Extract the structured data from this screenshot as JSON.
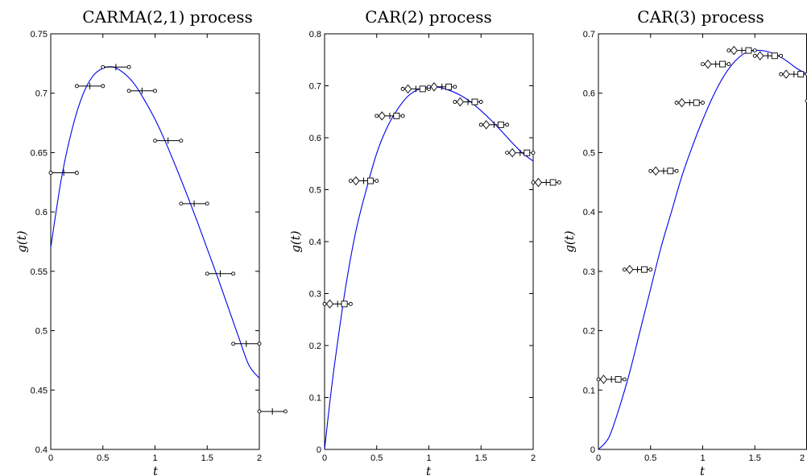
{
  "chart_data": [
    {
      "type": "line",
      "title": "CARMA(2,1) process",
      "xlabel": "t",
      "ylabel": "g(t)",
      "xlim": [
        0,
        2
      ],
      "ylim": [
        0.4,
        0.75
      ],
      "xticks": [
        0,
        0.5,
        1,
        1.5,
        2
      ],
      "xtick_labels": [
        "0",
        "0.5",
        "1",
        "1.5",
        "2"
      ],
      "yticks": [
        0.4,
        0.45,
        0.5,
        0.55,
        0.6,
        0.65,
        0.7,
        0.75
      ],
      "ytick_labels": [
        "0.4",
        "0.45",
        "0.5",
        "0.55",
        "0.6",
        "0.65",
        "0.7",
        "0.75"
      ],
      "curve": {
        "x": [
          0,
          0.1,
          0.2,
          0.3,
          0.4,
          0.5,
          0.6,
          0.7,
          0.8,
          0.9,
          1.0,
          1.1,
          1.2,
          1.3,
          1.4,
          1.5,
          1.6,
          1.7,
          1.8,
          1.9,
          2.0
        ],
        "y": [
          0.57,
          0.627,
          0.668,
          0.697,
          0.714,
          0.721,
          0.722,
          0.717,
          0.708,
          0.694,
          0.678,
          0.659,
          0.638,
          0.616,
          0.593,
          0.569,
          0.545,
          0.52,
          0.495,
          0.471,
          0.46
        ]
      },
      "intervals": [
        {
          "x0": 0.0,
          "x1": 0.25,
          "y": 0.633
        },
        {
          "x0": 0.25,
          "x1": 0.5,
          "y": 0.706
        },
        {
          "x0": 0.5,
          "x1": 0.75,
          "y": 0.722
        },
        {
          "x0": 0.75,
          "x1": 1.0,
          "y": 0.702
        },
        {
          "x0": 1.0,
          "x1": 1.25,
          "y": 0.66
        },
        {
          "x0": 1.25,
          "x1": 1.5,
          "y": 0.607
        },
        {
          "x0": 1.5,
          "x1": 1.75,
          "y": 0.548
        },
        {
          "x0": 1.75,
          "x1": 2.0,
          "y": 0.489
        },
        {
          "x0": 2.0,
          "x1": 2.25,
          "y": 0.432
        }
      ],
      "marker_style": "plus",
      "grid": false
    },
    {
      "type": "line",
      "title": "CAR(2) process",
      "xlabel": "t",
      "ylabel": "g(t)",
      "xlim": [
        0,
        2
      ],
      "ylim": [
        0,
        0.8
      ],
      "xticks": [
        0,
        0.5,
        1,
        1.5,
        2
      ],
      "xtick_labels": [
        "0",
        "0.5",
        "1",
        "1.5",
        "2"
      ],
      "yticks": [
        0,
        0.1,
        0.2,
        0.3,
        0.4,
        0.5,
        0.6,
        0.7,
        0.8
      ],
      "ytick_labels": [
        "0",
        "0.1",
        "0.2",
        "0.3",
        "0.4",
        "0.5",
        "0.6",
        "0.7",
        "0.8"
      ],
      "curve": {
        "x": [
          0,
          0.05,
          0.1,
          0.2,
          0.3,
          0.4,
          0.5,
          0.6,
          0.7,
          0.8,
          0.9,
          1.0,
          1.1,
          1.2,
          1.3,
          1.4,
          1.5,
          1.6,
          1.7,
          1.8,
          1.9,
          2.0
        ],
        "y": [
          0,
          0.09,
          0.17,
          0.31,
          0.42,
          0.5,
          0.57,
          0.62,
          0.655,
          0.68,
          0.693,
          0.698,
          0.697,
          0.691,
          0.682,
          0.669,
          0.652,
          0.633,
          0.612,
          0.59,
          0.57,
          0.555
        ]
      },
      "intervals": [
        {
          "x0": 0.0,
          "x1": 0.25,
          "y": 0.28
        },
        {
          "x0": 0.25,
          "x1": 0.5,
          "y": 0.517
        },
        {
          "x0": 0.5,
          "x1": 0.75,
          "y": 0.642
        },
        {
          "x0": 0.75,
          "x1": 1.0,
          "y": 0.694
        },
        {
          "x0": 1.0,
          "x1": 1.25,
          "y": 0.698
        },
        {
          "x0": 1.25,
          "x1": 1.5,
          "y": 0.669
        },
        {
          "x0": 1.5,
          "x1": 1.75,
          "y": 0.625
        },
        {
          "x0": 1.75,
          "x1": 2.0,
          "y": 0.571
        },
        {
          "x0": 2.0,
          "x1": 2.25,
          "y": 0.514
        }
      ],
      "marker_style": "diamond-plus-square",
      "grid": false
    },
    {
      "type": "line",
      "title": "CAR(3) process",
      "xlabel": "t",
      "ylabel": "g(t)",
      "xlim": [
        0,
        2
      ],
      "ylim": [
        0,
        0.7
      ],
      "xticks": [
        0,
        0.5,
        1,
        1.5,
        2
      ],
      "xtick_labels": [
        "0",
        "0.5",
        "1",
        "1.5",
        "2"
      ],
      "yticks": [
        0,
        0.1,
        0.2,
        0.3,
        0.4,
        0.5,
        0.6,
        0.7
      ],
      "ytick_labels": [
        "0",
        "0.1",
        "0.2",
        "0.3",
        "0.4",
        "0.5",
        "0.6",
        "0.7"
      ],
      "curve": {
        "x": [
          0,
          0.1,
          0.2,
          0.3,
          0.4,
          0.5,
          0.6,
          0.7,
          0.8,
          0.9,
          1.0,
          1.1,
          1.2,
          1.3,
          1.4,
          1.5,
          1.6,
          1.7,
          1.8,
          1.9,
          2.0
        ],
        "y": [
          0,
          0.02,
          0.07,
          0.13,
          0.2,
          0.27,
          0.34,
          0.4,
          0.46,
          0.51,
          0.555,
          0.595,
          0.628,
          0.652,
          0.667,
          0.672,
          0.671,
          0.665,
          0.655,
          0.642,
          0.632
        ]
      },
      "intervals": [
        {
          "x0": 0.0,
          "x1": 0.25,
          "y": 0.118
        },
        {
          "x0": 0.25,
          "x1": 0.5,
          "y": 0.303
        },
        {
          "x0": 0.5,
          "x1": 0.75,
          "y": 0.469
        },
        {
          "x0": 0.75,
          "x1": 1.0,
          "y": 0.584
        },
        {
          "x0": 1.0,
          "x1": 1.25,
          "y": 0.649
        },
        {
          "x0": 1.25,
          "x1": 1.5,
          "y": 0.672
        },
        {
          "x0": 1.5,
          "x1": 1.75,
          "y": 0.663
        },
        {
          "x0": 1.75,
          "x1": 2.0,
          "y": 0.632
        },
        {
          "x0": 2.0,
          "x1": 2.25,
          "y": 0.587
        }
      ],
      "marker_style": "diamond-plus-square",
      "grid": false
    }
  ]
}
